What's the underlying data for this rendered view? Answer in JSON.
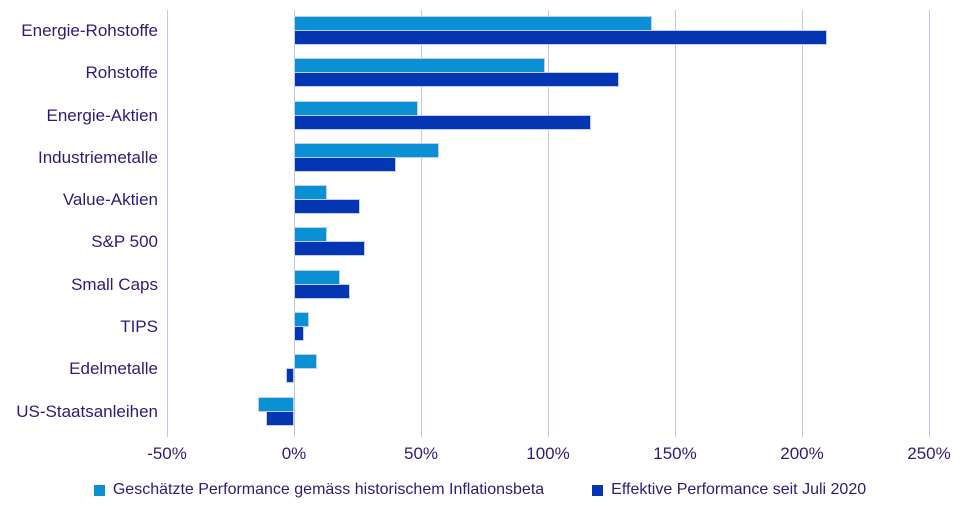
{
  "colors": {
    "series_estimated": "#0991d4",
    "series_effective": "#0435b3",
    "text": "#281e78",
    "gridline": "#bcc7e9",
    "background": "#ffffff"
  },
  "chart_data": {
    "type": "bar",
    "orientation": "horizontal",
    "title": "",
    "categories": [
      "Energie-Rohstoffe",
      "Rohstoffe",
      "Energie-Aktien",
      "Industriemetalle",
      "Value-Aktien",
      "S&P 500",
      "Small Caps",
      "TIPS",
      "Edelmetalle",
      "US-Staatsanleihen"
    ],
    "series": [
      {
        "name": "Geschätzte Performance gemäss historischem Inflationsbeta",
        "color": "#0991d4",
        "values": [
          141,
          99,
          49,
          57,
          13,
          13,
          18,
          6,
          9,
          -14
        ]
      },
      {
        "name": "Effektive Performance seit Juli 2020",
        "color": "#0435b3",
        "values": [
          210,
          128,
          117,
          40,
          26,
          28,
          22,
          4,
          -3,
          -11
        ]
      }
    ],
    "x_axis": {
      "min": -50,
      "max": 250,
      "unit": "%",
      "tick_values": [
        -50,
        0,
        50,
        100,
        150,
        200,
        250
      ],
      "tick_labels": [
        "-50%",
        "0%",
        "50%",
        "100%",
        "150%",
        "200%",
        "250%"
      ]
    },
    "grid": "vertical",
    "legend_position": "bottom"
  }
}
